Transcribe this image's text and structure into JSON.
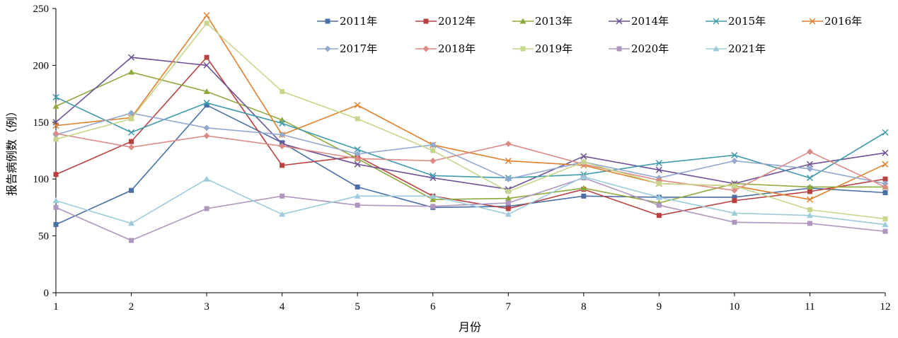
{
  "chart_data": {
    "type": "line",
    "title": "",
    "xlabel": "月份",
    "ylabel": "报告病例数（例）",
    "ylim": [
      0,
      250
    ],
    "yticks": [
      0,
      50,
      100,
      150,
      200,
      250
    ],
    "x": [
      1,
      2,
      3,
      4,
      5,
      6,
      7,
      8,
      9,
      10,
      11,
      12
    ],
    "grid": false,
    "legend_position": "top-right",
    "series": [
      {
        "name": "2011年",
        "color": "#4a6fa5",
        "marker": "square",
        "values": [
          60,
          90,
          165,
          132,
          93,
          75,
          76,
          85,
          84,
          84,
          92,
          88
        ]
      },
      {
        "name": "2012年",
        "color": "#b94040",
        "marker": "square",
        "values": [
          104,
          133,
          207,
          112,
          120,
          85,
          74,
          91,
          68,
          81,
          89,
          100
        ]
      },
      {
        "name": "2013年",
        "color": "#8faa3c",
        "marker": "triangle",
        "values": [
          164,
          194,
          177,
          152,
          118,
          82,
          83,
          92,
          79,
          96,
          93,
          93
        ]
      },
      {
        "name": "2014年",
        "color": "#6e5296",
        "marker": "x",
        "values": [
          150,
          207,
          200,
          131,
          113,
          101,
          91,
          120,
          108,
          96,
          113,
          123
        ]
      },
      {
        "name": "2015年",
        "color": "#3f9aaa",
        "marker": "x",
        "values": [
          172,
          141,
          167,
          149,
          126,
          103,
          101,
          104,
          114,
          121,
          101,
          141
        ]
      },
      {
        "name": "2016年",
        "color": "#e0812d",
        "marker": "x",
        "values": [
          147,
          154,
          244,
          139,
          165,
          130,
          116,
          112,
          96,
          94,
          82,
          113
        ]
      },
      {
        "name": "2017年",
        "color": "#92a9cf",
        "marker": "diamond",
        "values": [
          139,
          158,
          145,
          139,
          122,
          130,
          100,
          115,
          101,
          116,
          109,
          96
        ]
      },
      {
        "name": "2018年",
        "color": "#de8a84",
        "marker": "diamond",
        "values": [
          140,
          128,
          138,
          129,
          118,
          116,
          131,
          113,
          99,
          90,
          124,
          93
        ]
      },
      {
        "name": "2019年",
        "color": "#c6d68c",
        "marker": "square",
        "values": [
          135,
          153,
          237,
          177,
          153,
          125,
          89,
          115,
          96,
          94,
          73,
          65
        ]
      },
      {
        "name": "2020年",
        "color": "#ae96bf",
        "marker": "square",
        "values": [
          75,
          46,
          74,
          85,
          77,
          76,
          79,
          101,
          77,
          62,
          61,
          54
        ]
      },
      {
        "name": "2021年",
        "color": "#9ccbdb",
        "marker": "triangle",
        "values": [
          81,
          61,
          100,
          69,
          85,
          85,
          69,
          102,
          84,
          70,
          68,
          60
        ]
      }
    ]
  }
}
